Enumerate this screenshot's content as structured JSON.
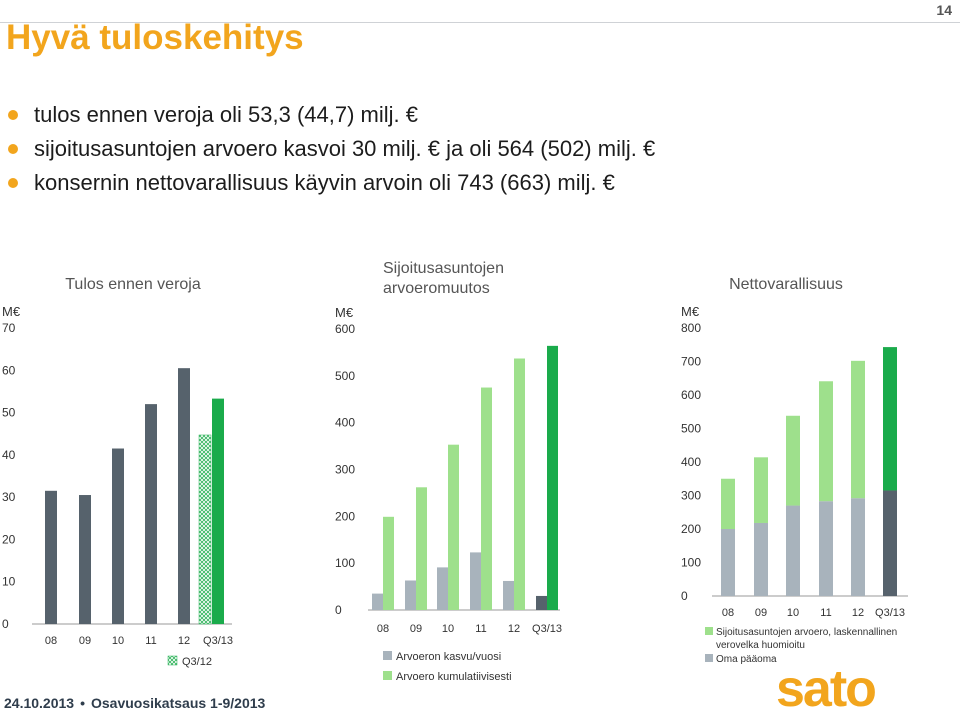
{
  "page_number": "14",
  "title": "Hyvä tuloskehitys",
  "bullets": [
    "tulos ennen veroja oli 53,3 (44,7) milj. €",
    "sijoitusasuntojen arvoero kasvoi 30 milj. € ja oli 564 (502) milj. €",
    "konsernin nettovarallisuus käyvin arvoin oli 743 (663) milj. €"
  ],
  "footer": {
    "date": "24.10.2013",
    "report": "Osavuosikatsaus 1-9/2013"
  },
  "logo_text": "sato",
  "colors": {
    "accent": "#f2a51d",
    "dark_bar": "#56626c",
    "light_green": "#9ee08c",
    "green": "#1aab4b",
    "gray_bar": "#a8b3bc",
    "logo": "#f2a51d"
  },
  "chart_data": [
    {
      "type": "bar",
      "title": "Tulos ennen veroja",
      "ylabel": "M€",
      "categories": [
        "08",
        "09",
        "10",
        "11",
        "12",
        "Q3/13"
      ],
      "values": [
        31.5,
        30.5,
        41.5,
        52,
        60.5,
        53.3
      ],
      "extra_bar": {
        "name": "Q3/12",
        "value": 44.7,
        "pattern": "hatched"
      },
      "ylim": [
        0,
        70
      ],
      "yticks": [
        "0",
        "10",
        "20",
        "30",
        "40",
        "50",
        "60",
        "70"
      ],
      "legend": [
        "Q3/12"
      ],
      "legend_position": "bottom-right"
    },
    {
      "type": "bar",
      "title": "Sijoitusasuntojen arvoeromuutos",
      "ylabel": "M€",
      "categories": [
        "08",
        "09",
        "10",
        "11",
        "12",
        "Q3/13"
      ],
      "series": [
        {
          "name": "Arvoeron kasvu/vuosi",
          "values": [
            35,
            63,
            91,
            123,
            62,
            30
          ]
        },
        {
          "name": "Arvoero kumulatiivisesti",
          "values": [
            199,
            262,
            353,
            475,
            537,
            564
          ]
        }
      ],
      "ylim": [
        0,
        600
      ],
      "yticks": [
        "0",
        "100",
        "200",
        "300",
        "400",
        "500",
        "600"
      ],
      "legend_position": "bottom"
    },
    {
      "type": "bar",
      "stacked": true,
      "title": "Nettovarallisuus",
      "ylabel": "M€",
      "categories": [
        "08",
        "09",
        "10",
        "11",
        "12",
        "Q3/13"
      ],
      "series": [
        {
          "name": "Oma pääoma",
          "values": [
            200,
            218,
            270,
            283,
            292,
            315
          ]
        },
        {
          "name": "Sijoitusasuntojen arvoero, laskennallinen verovelka huomioitu",
          "values": [
            150,
            196,
            268,
            358,
            410,
            428
          ]
        }
      ],
      "ylim": [
        0,
        800
      ],
      "yticks": [
        "0",
        "100",
        "200",
        "300",
        "400",
        "500",
        "600",
        "700",
        "800"
      ],
      "legend_position": "bottom"
    }
  ]
}
